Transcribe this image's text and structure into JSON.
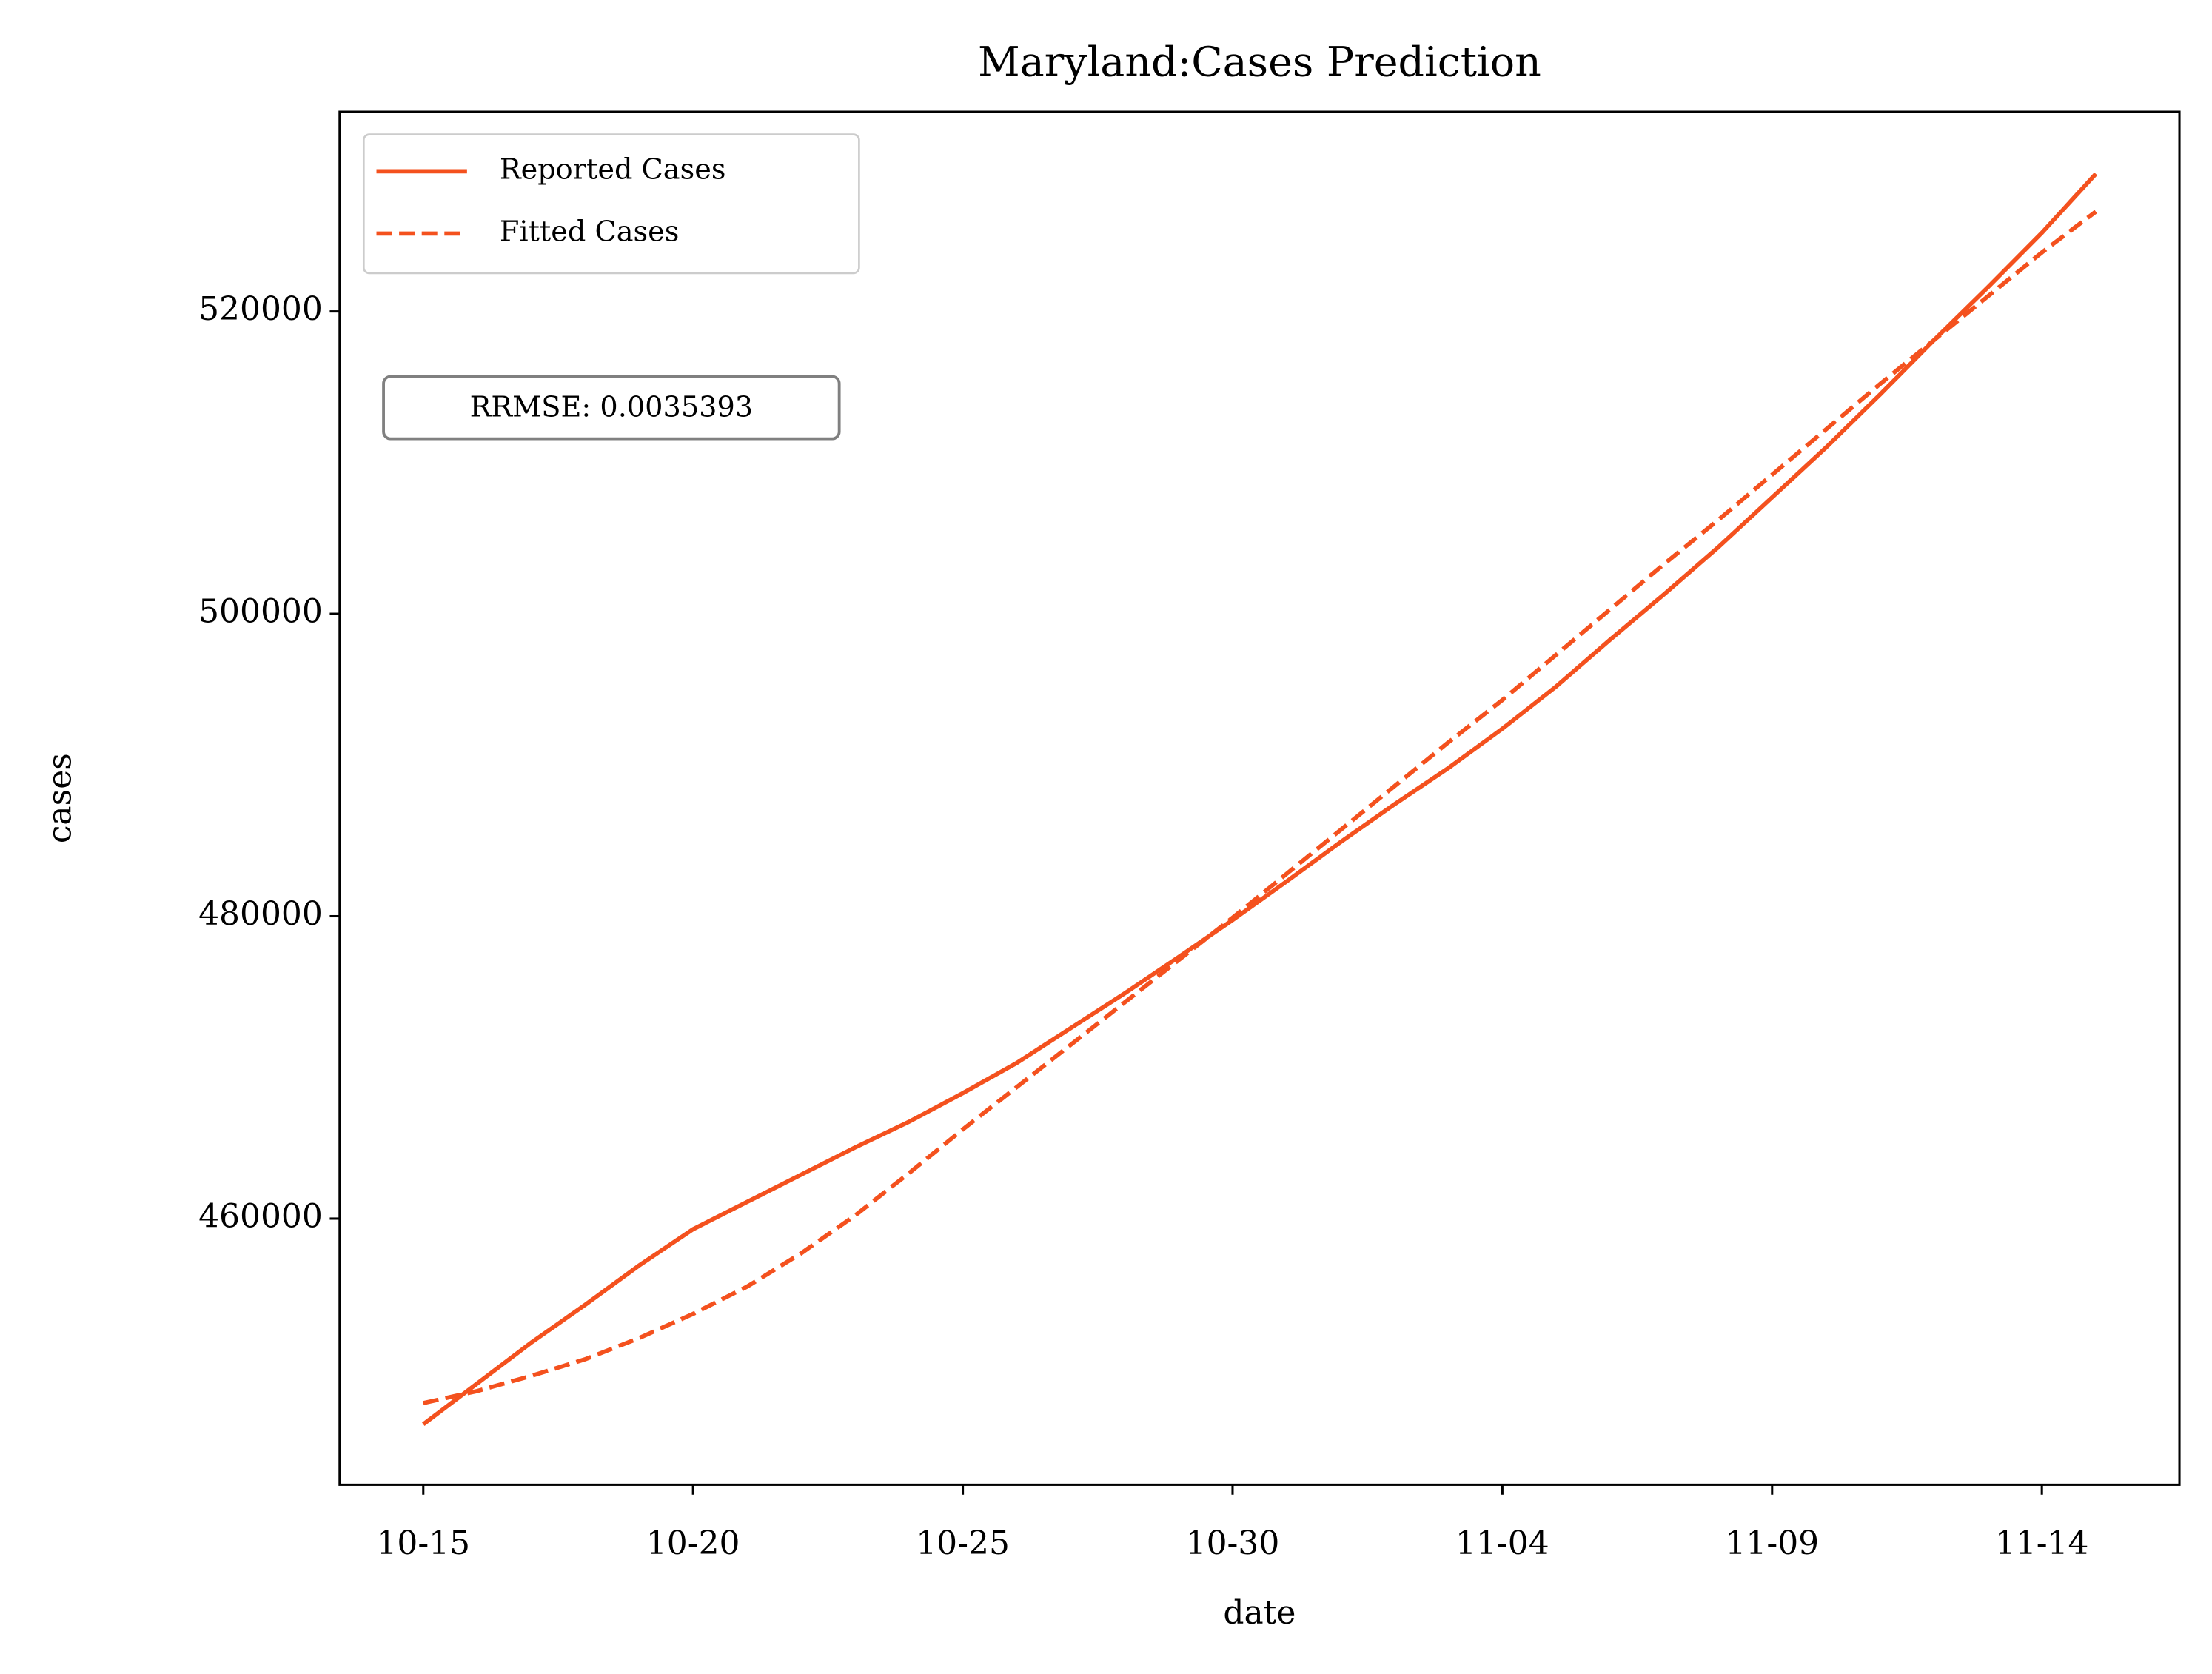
{
  "chart_data": {
    "type": "line",
    "title": "Maryland:Cases Prediction",
    "x_label": "date",
    "y_label": "cases",
    "x": [
      "10-15",
      "10-16",
      "10-17",
      "10-18",
      "10-19",
      "10-20",
      "10-21",
      "10-22",
      "10-23",
      "10-24",
      "10-25",
      "10-26",
      "10-27",
      "10-28",
      "10-29",
      "10-30",
      "10-31",
      "11-01",
      "11-02",
      "11-03",
      "11-04",
      "11-05",
      "11-06",
      "11-07",
      "11-08",
      "11-09",
      "11-10",
      "11-11",
      "11-12",
      "11-13",
      "11-14",
      "11-15"
    ],
    "xticks": [
      "10-15",
      "10-20",
      "10-25",
      "10-30",
      "11-04",
      "11-09",
      "11-14"
    ],
    "series": [
      {
        "name": "Reported Cases",
        "color": "#f4511e",
        "dash": "solid",
        "values": [
          446400,
          449100,
          451800,
          454300,
          456900,
          459300,
          461100,
          462900,
          464700,
          466400,
          468300,
          470300,
          472600,
          474900,
          477300,
          479750,
          482300,
          484900,
          487400,
          489800,
          492400,
          495200,
          498300,
          501300,
          504400,
          507700,
          511000,
          514500,
          518100,
          521600,
          525200,
          529100
        ]
      },
      {
        "name": "Fitted Cases",
        "color": "#f4511e",
        "dash": "dashed",
        "values": [
          447800,
          448600,
          449600,
          450700,
          452100,
          453700,
          455500,
          457700,
          460200,
          463000,
          465900,
          468700,
          471500,
          474300,
          477100,
          479900,
          482800,
          485700,
          488600,
          491500,
          494300,
          497300,
          500300,
          503300,
          506200,
          509200,
          512200,
          515200,
          518100,
          521000,
          523900,
          526600
        ]
      }
    ],
    "ylim": [
      442400,
      533200
    ],
    "yticks": [
      460000,
      480000,
      500000,
      520000
    ],
    "legend": "upper left",
    "annotation": "RRMSE: 0.0035393"
  }
}
